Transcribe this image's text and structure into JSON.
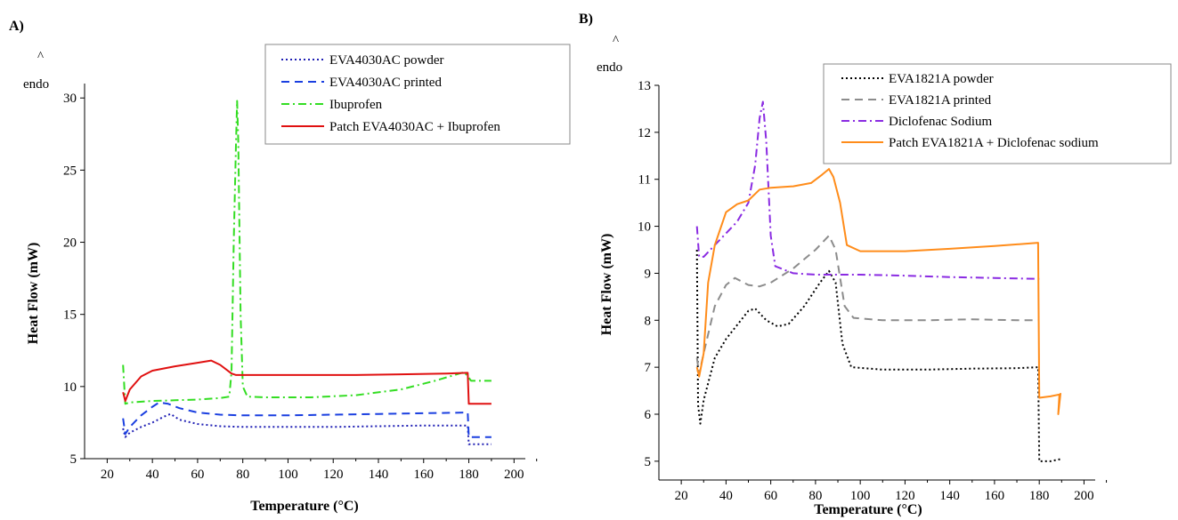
{
  "chart_data": [
    {
      "type": "line",
      "panel_label": "A)",
      "endo_label": "endo",
      "endo_arrow": "^",
      "xlabel": "Temperature (°C)",
      "ylabel": "Heat Flow (mW)",
      "xlim": [
        10,
        205
      ],
      "ylim": [
        5,
        31
      ],
      "x_ticks": [
        20,
        40,
        60,
        80,
        100,
        120,
        140,
        160,
        180,
        200
      ],
      "y_ticks": [
        5,
        10,
        15,
        20,
        25,
        30
      ],
      "legend_position": "top-right",
      "series": [
        {
          "name": "EVA4030AC powder",
          "color": "#1f1fb4",
          "style": "dotted",
          "points": [
            [
              27,
              7.1
            ],
            [
              28,
              6.5
            ],
            [
              30,
              6.8
            ],
            [
              35,
              7.2
            ],
            [
              40,
              7.5
            ],
            [
              45,
              7.9
            ],
            [
              48,
              8.1
            ],
            [
              52,
              7.7
            ],
            [
              60,
              7.4
            ],
            [
              70,
              7.25
            ],
            [
              80,
              7.2
            ],
            [
              100,
              7.2
            ],
            [
              120,
              7.2
            ],
            [
              140,
              7.25
            ],
            [
              160,
              7.3
            ],
            [
              179.5,
              7.3
            ],
            [
              180,
              6.0
            ],
            [
              190,
              6.0
            ]
          ]
        },
        {
          "name": "EVA4030AC printed",
          "color": "#1a3fe0",
          "style": "dashed",
          "points": [
            [
              27,
              7.8
            ],
            [
              28,
              6.7
            ],
            [
              30,
              7.2
            ],
            [
              35,
              8.0
            ],
            [
              40,
              8.6
            ],
            [
              43,
              8.9
            ],
            [
              47,
              8.8
            ],
            [
              52,
              8.5
            ],
            [
              60,
              8.2
            ],
            [
              70,
              8.05
            ],
            [
              80,
              8.0
            ],
            [
              100,
              8.0
            ],
            [
              120,
              8.05
            ],
            [
              140,
              8.1
            ],
            [
              160,
              8.15
            ],
            [
              179.5,
              8.2
            ],
            [
              180,
              6.5
            ],
            [
              190,
              6.5
            ]
          ]
        },
        {
          "name": "Ibuprofen",
          "color": "#33dd22",
          "style": "dashdot",
          "points": [
            [
              27,
              11.5
            ],
            [
              28,
              8.8
            ],
            [
              30,
              8.9
            ],
            [
              40,
              9.0
            ],
            [
              50,
              9.05
            ],
            [
              60,
              9.1
            ],
            [
              70,
              9.2
            ],
            [
              74,
              9.3
            ],
            [
              75,
              11.0
            ],
            [
              76,
              20.0
            ],
            [
              77,
              27.0
            ],
            [
              77.5,
              29.8
            ],
            [
              78,
              27.0
            ],
            [
              79,
              15.0
            ],
            [
              80,
              10.0
            ],
            [
              82,
              9.3
            ],
            [
              90,
              9.25
            ],
            [
              110,
              9.25
            ],
            [
              130,
              9.4
            ],
            [
              150,
              9.8
            ],
            [
              165,
              10.4
            ],
            [
              178,
              11.0
            ],
            [
              181,
              10.4
            ],
            [
              190,
              10.4
            ]
          ]
        },
        {
          "name": "Patch EVA4030AC + Ibuprofen",
          "color": "#e01010",
          "style": "solid",
          "points": [
            [
              27,
              9.6
            ],
            [
              28,
              9.0
            ],
            [
              30,
              9.8
            ],
            [
              35,
              10.7
            ],
            [
              40,
              11.1
            ],
            [
              50,
              11.4
            ],
            [
              60,
              11.65
            ],
            [
              66,
              11.8
            ],
            [
              70,
              11.5
            ],
            [
              75,
              10.9
            ],
            [
              77,
              10.8
            ],
            [
              90,
              10.8
            ],
            [
              110,
              10.8
            ],
            [
              130,
              10.8
            ],
            [
              150,
              10.85
            ],
            [
              170,
              10.9
            ],
            [
              179.5,
              10.95
            ],
            [
              180,
              8.8
            ],
            [
              190,
              8.8
            ]
          ]
        }
      ]
    },
    {
      "type": "line",
      "panel_label": "B)",
      "endo_label": "endo",
      "endo_arrow": "^",
      "xlabel": "Temperature (°C)",
      "ylabel": "Heat Flow (mW)",
      "xlim": [
        10,
        205
      ],
      "ylim": [
        4.6,
        13
      ],
      "x_ticks": [
        20,
        40,
        60,
        80,
        100,
        120,
        140,
        160,
        180,
        200
      ],
      "y_ticks": [
        5,
        6,
        7,
        8,
        9,
        10,
        11,
        12,
        13
      ],
      "legend_position": "top-right",
      "series": [
        {
          "name": "EVA1821A powder",
          "color": "#000000",
          "style": "dotted",
          "points": [
            [
              27,
              9.5
            ],
            [
              27.5,
              6.2
            ],
            [
              28.5,
              5.8
            ],
            [
              30,
              6.3
            ],
            [
              35,
              7.2
            ],
            [
              40,
              7.6
            ],
            [
              45,
              7.9
            ],
            [
              50,
              8.2
            ],
            [
              53,
              8.25
            ],
            [
              58,
              8.0
            ],
            [
              63,
              7.87
            ],
            [
              68,
              7.92
            ],
            [
              75,
              8.3
            ],
            [
              82,
              8.8
            ],
            [
              86,
              9.05
            ],
            [
              89,
              8.8
            ],
            [
              92,
              7.5
            ],
            [
              96,
              7.0
            ],
            [
              110,
              6.95
            ],
            [
              130,
              6.95
            ],
            [
              150,
              6.97
            ],
            [
              170,
              6.98
            ],
            [
              179.5,
              7.0
            ],
            [
              180,
              5.0
            ],
            [
              185,
              5.0
            ],
            [
              190,
              5.05
            ]
          ]
        },
        {
          "name": "EVA1821A printed",
          "color": "#8c8c8c",
          "style": "dashed",
          "points": [
            [
              27,
              7.2
            ],
            [
              28,
              6.85
            ],
            [
              30,
              7.3
            ],
            [
              35,
              8.3
            ],
            [
              40,
              8.75
            ],
            [
              44,
              8.9
            ],
            [
              50,
              8.75
            ],
            [
              55,
              8.72
            ],
            [
              60,
              8.8
            ],
            [
              70,
              9.1
            ],
            [
              80,
              9.5
            ],
            [
              86,
              9.8
            ],
            [
              89,
              9.5
            ],
            [
              93,
              8.3
            ],
            [
              97,
              8.05
            ],
            [
              110,
              8.0
            ],
            [
              130,
              8.0
            ],
            [
              150,
              8.02
            ],
            [
              170,
              8.0
            ],
            [
              180,
              8.0
            ]
          ]
        },
        {
          "name": "Diclofenac Sodium",
          "color": "#8a2be2",
          "style": "dashdot",
          "points": [
            [
              27,
              10.0
            ],
            [
              28,
              9.35
            ],
            [
              30,
              9.35
            ],
            [
              35,
              9.6
            ],
            [
              40,
              9.85
            ],
            [
              45,
              10.1
            ],
            [
              50,
              10.5
            ],
            [
              53,
              11.3
            ],
            [
              55,
              12.3
            ],
            [
              56.5,
              12.65
            ],
            [
              58,
              11.8
            ],
            [
              60,
              9.8
            ],
            [
              62,
              9.15
            ],
            [
              70,
              9.0
            ],
            [
              80,
              8.97
            ],
            [
              90,
              8.97
            ],
            [
              100,
              8.97
            ],
            [
              120,
              8.95
            ],
            [
              140,
              8.92
            ],
            [
              160,
              8.9
            ],
            [
              180,
              8.88
            ]
          ]
        },
        {
          "name": "Patch EVA1821A + Diclofenac sodium",
          "color": "#ff8c1a",
          "style": "solid",
          "points": [
            [
              27,
              7.0
            ],
            [
              28,
              6.8
            ],
            [
              30,
              7.3
            ],
            [
              32,
              8.8
            ],
            [
              35,
              9.6
            ],
            [
              40,
              10.3
            ],
            [
              45,
              10.47
            ],
            [
              50,
              10.55
            ],
            [
              55,
              10.78
            ],
            [
              60,
              10.82
            ],
            [
              70,
              10.85
            ],
            [
              78,
              10.92
            ],
            [
              83,
              11.1
            ],
            [
              86,
              11.22
            ],
            [
              88,
              11.05
            ],
            [
              91,
              10.5
            ],
            [
              94,
              9.6
            ],
            [
              100,
              9.47
            ],
            [
              120,
              9.47
            ],
            [
              140,
              9.52
            ],
            [
              160,
              9.58
            ],
            [
              179.5,
              9.65
            ],
            [
              180,
              6.35
            ],
            [
              185,
              6.38
            ],
            [
              189,
              6.42
            ],
            [
              188.5,
              6.0
            ],
            [
              189.5,
              6.45
            ]
          ]
        }
      ]
    }
  ]
}
